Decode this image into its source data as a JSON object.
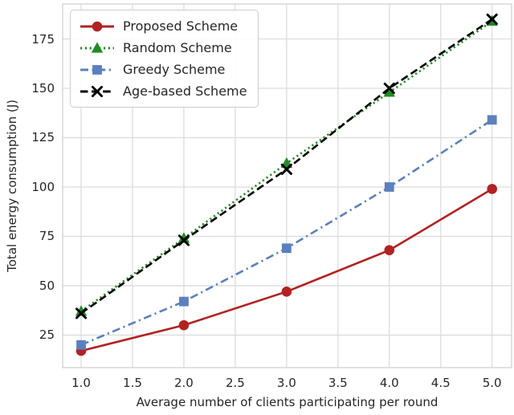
{
  "figure": {
    "background_color": "#ffffff",
    "grid_color": "#dcdcdc",
    "spine_color": "#d4d4d4",
    "text_color": "#262626"
  },
  "chart_data": {
    "type": "line",
    "title": "",
    "xlabel": "Average number of clients participating per round",
    "ylabel": "Total energy consumption (J)",
    "x": [
      1,
      2,
      3,
      4,
      5
    ],
    "series": [
      {
        "name": "Proposed Scheme",
        "values": [
          17,
          30,
          47,
          68,
          99
        ],
        "color": "#b22222",
        "marker": "circle",
        "linestyle": "solid"
      },
      {
        "name": "Random Scheme",
        "values": [
          37,
          74,
          112,
          148,
          184
        ],
        "color": "#228b22",
        "marker": "triangle",
        "linestyle": "dotted"
      },
      {
        "name": "Greedy Scheme",
        "values": [
          20,
          42,
          69,
          100,
          134
        ],
        "color": "#5b80be",
        "marker": "square",
        "linestyle": "dashdot"
      },
      {
        "name": "Age-based Scheme",
        "values": [
          36,
          73,
          109,
          150,
          185
        ],
        "color": "#000000",
        "marker": "x",
        "linestyle": "dashed"
      }
    ],
    "xticks": [
      1.0,
      1.5,
      2.0,
      2.5,
      3.0,
      3.5,
      4.0,
      4.5,
      5.0
    ],
    "xtick_labels": [
      "1.0",
      "1.5",
      "2.0",
      "2.5",
      "3.0",
      "3.5",
      "4.0",
      "4.5",
      "5.0"
    ],
    "yticks": [
      25,
      50,
      75,
      100,
      125,
      150,
      175
    ],
    "ytick_labels": [
      "25",
      "50",
      "75",
      "100",
      "125",
      "150",
      "175"
    ],
    "xlim": [
      0.82,
      5.19
    ],
    "ylim": [
      8.5,
      192.7
    ],
    "grid": true,
    "legend_position": "upper-left"
  }
}
